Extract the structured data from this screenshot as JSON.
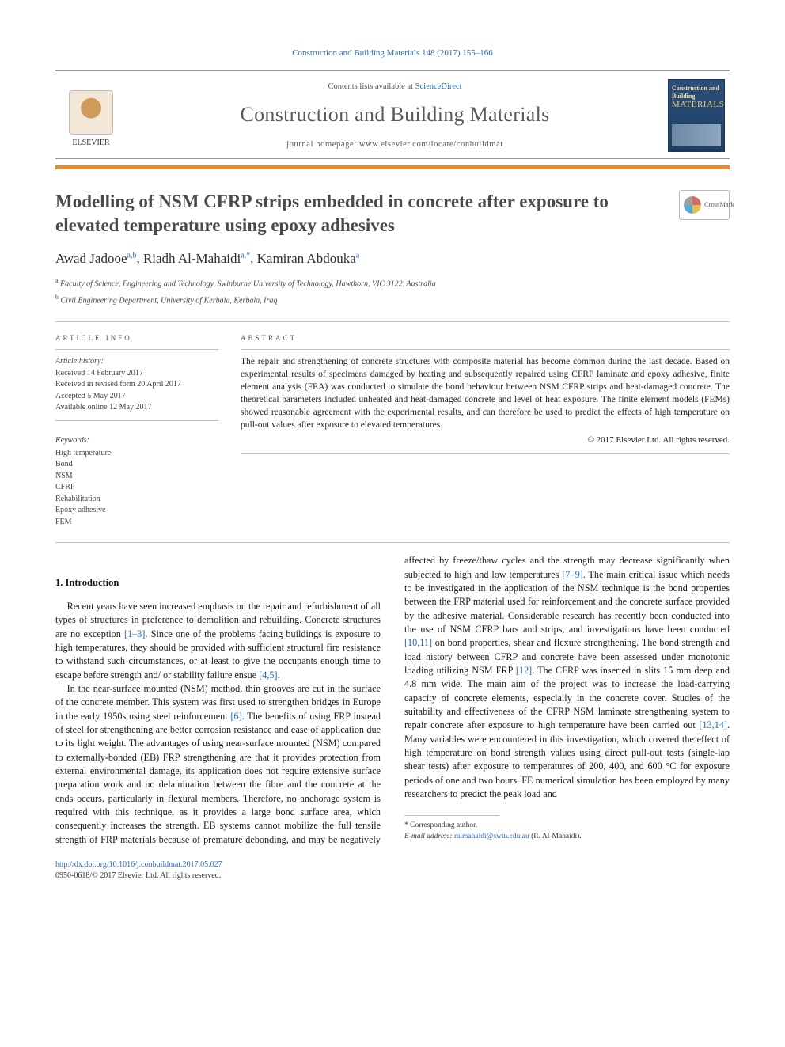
{
  "header_citation": "Construction and Building Materials 148 (2017) 155–166",
  "banner": {
    "contents_prefix": "Contents lists available at ",
    "contents_link": "ScienceDirect",
    "journal_title": "Construction and Building Materials",
    "homepage_label": "journal homepage: www.elsevier.com/locate/conbuildmat",
    "publisher": "ELSEVIER",
    "cover_top": "Construction and Building",
    "cover_word": "MATERIALS"
  },
  "crossmark_label": "CrossMark",
  "article": {
    "title": "Modelling of NSM CFRP strips embedded in concrete after exposure to elevated temperature using epoxy adhesives",
    "authors_html": "Awad Jadooe",
    "authors": [
      {
        "name": "Awad Jadooe",
        "sup": "a,b"
      },
      {
        "name": "Riadh Al-Mahaidi",
        "sup": "a,*"
      },
      {
        "name": "Kamiran Abdouka",
        "sup": "a"
      }
    ],
    "affiliations": [
      {
        "sup": "a",
        "text": "Faculty of Science, Engineering and Technology, Swinburne University of Technology, Hawthorn, VIC 3122, Australia"
      },
      {
        "sup": "b",
        "text": "Civil Engineering Department, University of Kerbala, Kerbala, Iraq"
      }
    ]
  },
  "info": {
    "head": "ARTICLE INFO",
    "history_label": "Article history:",
    "history": [
      "Received 14 February 2017",
      "Received in revised form 20 April 2017",
      "Accepted 5 May 2017",
      "Available online 12 May 2017"
    ],
    "keywords_label": "Keywords:",
    "keywords": [
      "High temperature",
      "Bond",
      "NSM",
      "CFRP",
      "Rehabilitation",
      "Epoxy adhesive",
      "FEM"
    ]
  },
  "abstract": {
    "head": "ABSTRACT",
    "text": "The repair and strengthening of concrete structures with composite material has become common during the last decade. Based on experimental results of specimens damaged by heating and subsequently repaired using CFRP laminate and epoxy adhesive, finite element analysis (FEA) was conducted to simulate the bond behaviour between NSM CFRP strips and heat-damaged concrete. The theoretical parameters included unheated and heat-damaged concrete and level of heat exposure. The finite element models (FEMs) showed reasonable agreement with the experimental results, and can therefore be used to predict the effects of high temperature on pull-out values after exposure to elevated temperatures.",
    "copyright": "© 2017 Elsevier Ltd. All rights reserved."
  },
  "section1": {
    "head": "1. Introduction",
    "p1a": "Recent years have seen increased emphasis on the repair and refurbishment of all types of structures in preference to demolition and rebuilding. Concrete structures are no exception ",
    "p1b": ". Since one of the problems facing buildings is exposure to high temperatures, they should be provided with sufficient structural fire resistance to withstand such circumstances, or at least to give the occupants enough time to escape before strength and/ or stability failure ensue ",
    "ref1": "[1–3]",
    "ref2": "[4,5]",
    "p2a": "In the near-surface mounted (NSM) method, thin grooves are cut in the surface of the concrete member. This system was first used to strengthen bridges in Europe in the early 1950s using steel reinforcement ",
    "ref3": "[6]",
    "p2b": ". The benefits of using FRP instead of steel for strengthening are better corrosion resistance and ease of application due to its light weight. The advantages of using near-surface mounted (NSM) compared to externally-bonded (EB) FRP strengthening are that it provides protection from external environmental damage, its application does not require extensive surface preparation work and no delamination between the fibre and the concrete at the ends occurs, particularly in flexural members. Therefore, no anchorage system is required with this technique, as it provides a",
    "p3a": "large bond surface area, which consequently increases the strength. EB systems cannot mobilize the full tensile strength of FRP materials because of premature debonding, and may be negatively affected by freeze/thaw cycles and the strength may decrease significantly when subjected to high and low temperatures ",
    "ref4": "[7–9]",
    "p3b": ". The main critical issue which needs to be investigated in the application of the NSM technique is the bond properties between the FRP material used for reinforcement and the concrete surface provided by the adhesive material. Considerable research has recently been conducted into the use of NSM CFRP bars and strips, and investigations have been conducted ",
    "ref5": "[10,11]",
    "p3c": " on bond properties, shear and flexure strengthening. The bond strength and load history between CFRP and concrete have been assessed under monotonic loading utilizing NSM FRP ",
    "ref6": "[12]",
    "p3d": ". The CFRP was inserted in slits 15 mm deep and 4.8 mm wide. The main aim of the project was to increase the load-carrying capacity of concrete elements, especially in the concrete cover. Studies of the suitability and effectiveness of the CFRP NSM laminate strengthening system to repair concrete after exposure to high temperature have been carried out ",
    "ref7": "[13,14]",
    "p3e": ". Many variables were encountered in this investigation, which covered the effect of high temperature on bond strength values using direct pull-out tests (single-lap shear tests) after exposure to temperatures of 200, 400, and 600 °C for exposure periods of one and two hours. FE numerical simulation has been employed by many researchers to predict the peak load and"
  },
  "footnotes": {
    "corr": "* Corresponding author.",
    "email_label": "E-mail address: ",
    "email": "ralmahaidi@swin.edu.au",
    "email_suffix": " (R. Al-Mahaidi)."
  },
  "footer": {
    "doi_label": "http://dx.doi.org/10.1016/j.conbuildmat.2017.05.027",
    "issn_line": "0950-0618/© 2017 Elsevier Ltd. All rights reserved."
  },
  "colors": {
    "link": "#2a6ab8",
    "orange": "#e98a2e",
    "grey_text": "#5a5a5a"
  }
}
